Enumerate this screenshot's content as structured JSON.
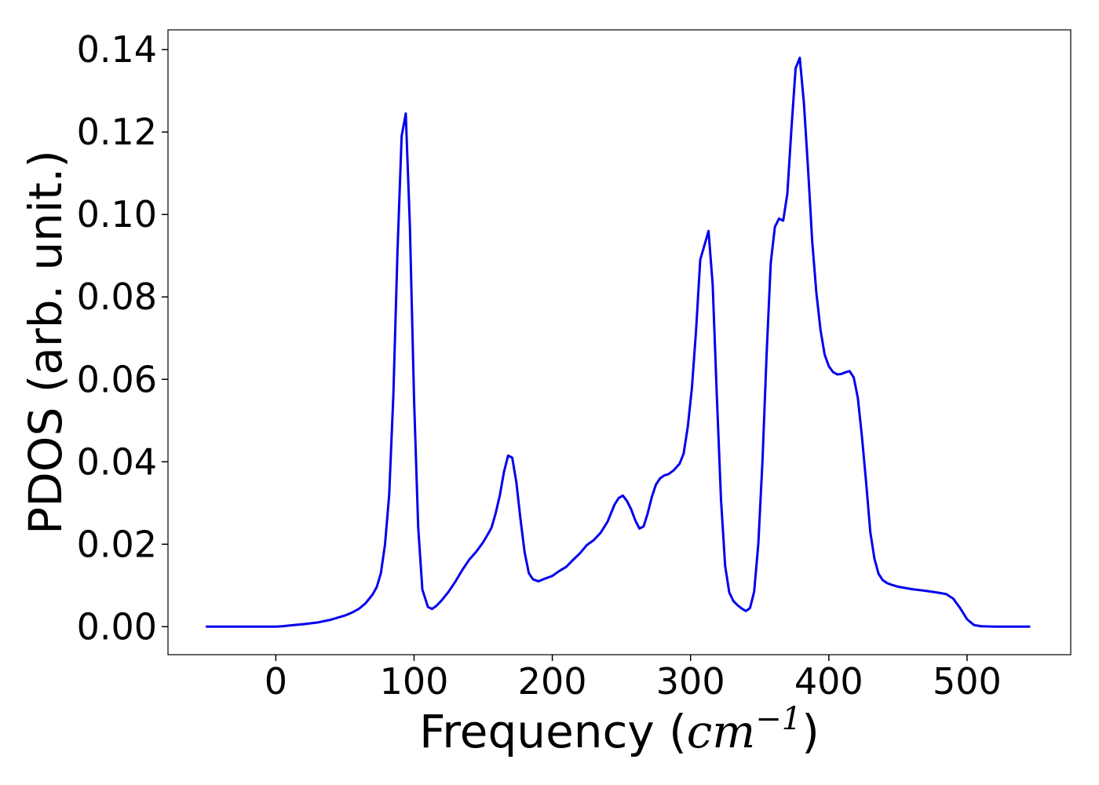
{
  "chart_data": {
    "type": "line",
    "xlabel": "Frequency (",
    "xlabel_math": "cm",
    "xlabel_sup": "−1",
    "xlabel_end": ")",
    "ylabel": "PDOS (arb. unit.)",
    "xlim": [
      -78,
      575
    ],
    "ylim": [
      -0.0068,
      0.1448
    ],
    "xticks": [
      0,
      100,
      200,
      300,
      400,
      500
    ],
    "xtick_labels": [
      "0",
      "100",
      "200",
      "300",
      "400",
      "500"
    ],
    "yticks": [
      0.0,
      0.02,
      0.04,
      0.06,
      0.08,
      0.1,
      0.12,
      0.14
    ],
    "ytick_labels": [
      "0.00",
      "0.02",
      "0.04",
      "0.06",
      "0.08",
      "0.10",
      "0.12",
      "0.14"
    ],
    "grid": false,
    "series": [
      {
        "color": "#0000ee",
        "x": [
          -50,
          0,
          5,
          10,
          20,
          30,
          40,
          50,
          55,
          60,
          65,
          70,
          73,
          76,
          79,
          82,
          85,
          88,
          91,
          94,
          97,
          100,
          103,
          106,
          110,
          113,
          116,
          120,
          125,
          130,
          135,
          140,
          145,
          150,
          153,
          156,
          159,
          162,
          165,
          168,
          171,
          174,
          177,
          180,
          183,
          186,
          190,
          195,
          200,
          205,
          210,
          215,
          220,
          225,
          230,
          235,
          240,
          245,
          248,
          251,
          254,
          257,
          260,
          263,
          266,
          269,
          272,
          275,
          278,
          281,
          284,
          288,
          292,
          295,
          298,
          301,
          304,
          307,
          310,
          313,
          316,
          319,
          322,
          325,
          328,
          331,
          334,
          337,
          340,
          343,
          346,
          349,
          352,
          355,
          358,
          361,
          364,
          367,
          370,
          373,
          376,
          379,
          382,
          385,
          388,
          391,
          394,
          397,
          400,
          403,
          406,
          409,
          412,
          415,
          418,
          421,
          424,
          427,
          430,
          433,
          436,
          439,
          442,
          445,
          450,
          460,
          470,
          480,
          485,
          490,
          495,
          500,
          505,
          510,
          520,
          545
        ],
        "y": [
          0.0,
          0.0,
          0.0001,
          0.0003,
          0.0006,
          0.001,
          0.0017,
          0.0027,
          0.0034,
          0.0043,
          0.0057,
          0.0078,
          0.0096,
          0.013,
          0.02,
          0.032,
          0.056,
          0.091,
          0.119,
          0.1245,
          0.097,
          0.055,
          0.024,
          0.009,
          0.0048,
          0.0043,
          0.005,
          0.0064,
          0.0085,
          0.011,
          0.0138,
          0.0163,
          0.0182,
          0.0205,
          0.0222,
          0.024,
          0.0275,
          0.0318,
          0.0375,
          0.0415,
          0.041,
          0.035,
          0.026,
          0.018,
          0.013,
          0.0115,
          0.011,
          0.0117,
          0.0123,
          0.0135,
          0.0145,
          0.0162,
          0.0178,
          0.0198,
          0.021,
          0.0228,
          0.0255,
          0.0296,
          0.0312,
          0.0318,
          0.0305,
          0.0285,
          0.0258,
          0.0238,
          0.0243,
          0.0275,
          0.0315,
          0.0345,
          0.036,
          0.0367,
          0.037,
          0.038,
          0.0395,
          0.042,
          0.0485,
          0.058,
          0.072,
          0.089,
          0.0925,
          0.096,
          0.083,
          0.056,
          0.031,
          0.0148,
          0.0083,
          0.0062,
          0.0052,
          0.0044,
          0.0038,
          0.0045,
          0.0085,
          0.02,
          0.04,
          0.066,
          0.0882,
          0.097,
          0.099,
          0.0985,
          0.105,
          0.121,
          0.1355,
          0.138,
          0.127,
          0.111,
          0.0935,
          0.081,
          0.072,
          0.066,
          0.0632,
          0.0618,
          0.0612,
          0.0613,
          0.0617,
          0.062,
          0.0605,
          0.0555,
          0.046,
          0.035,
          0.023,
          0.0165,
          0.0128,
          0.0113,
          0.0106,
          0.0102,
          0.0097,
          0.0091,
          0.0087,
          0.0082,
          0.0079,
          0.0068,
          0.0045,
          0.0018,
          0.0004,
          0.0001,
          0.0,
          0.0
        ]
      }
    ]
  }
}
